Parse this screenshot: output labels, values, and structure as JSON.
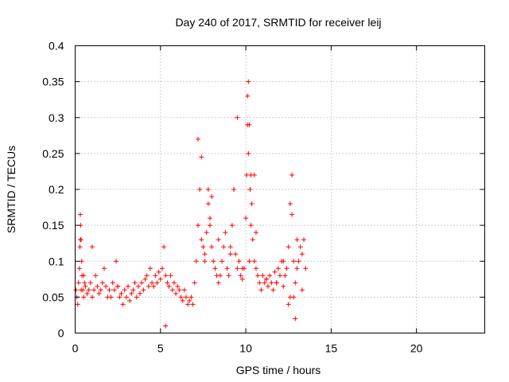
{
  "chart_data": {
    "type": "scatter",
    "title": "Day 240 of 2017, SRMTID for receiver leij",
    "xlabel": "GPS time / hours",
    "ylabel": "SRMTID / TECUs",
    "xlim": [
      0,
      24
    ],
    "ylim": [
      0,
      0.4
    ],
    "xticks": [
      0,
      5,
      10,
      15,
      20
    ],
    "xtick_labels": [
      "0",
      "5",
      "10",
      "15",
      "20"
    ],
    "yticks": [
      0,
      0.05,
      0.1,
      0.15,
      0.2,
      0.25,
      0.3,
      0.35,
      0.4
    ],
    "ytick_labels": [
      "0",
      "0.05",
      "0.1",
      "0.15",
      "0.2",
      "0.25",
      "0.3",
      "0.35",
      "0.4"
    ],
    "grid": true,
    "marker": "+",
    "marker_color": "#ff0000",
    "series": [
      {
        "name": "SRMTID",
        "x": [
          0.05,
          0.1,
          0.15,
          0.2,
          0.25,
          0.28,
          0.3,
          0.32,
          0.35,
          0.38,
          0.4,
          0.45,
          0.5,
          0.55,
          0.6,
          0.7,
          0.8,
          0.9,
          1.0,
          1.1,
          1.2,
          1.3,
          1.4,
          1.5,
          1.6,
          1.7,
          1.8,
          1.9,
          2.0,
          2.1,
          2.2,
          2.3,
          2.4,
          2.5,
          2.6,
          2.7,
          2.8,
          2.9,
          3.0,
          3.1,
          3.2,
          3.3,
          3.4,
          3.5,
          3.6,
          3.7,
          3.8,
          3.9,
          4.0,
          4.1,
          4.2,
          4.3,
          4.4,
          4.5,
          4.6,
          4.7,
          4.8,
          4.9,
          5.0,
          5.1,
          5.2,
          5.3,
          5.4,
          5.5,
          5.6,
          5.7,
          5.8,
          5.9,
          6.0,
          6.1,
          6.2,
          6.3,
          6.4,
          6.5,
          6.6,
          6.7,
          6.8,
          6.9,
          7.0,
          7.1,
          7.2,
          7.3,
          7.4,
          7.5,
          7.6,
          7.7,
          7.8,
          7.9,
          8.0,
          8.1,
          8.2,
          8.3,
          8.4,
          8.5,
          8.6,
          8.7,
          8.8,
          8.9,
          9.0,
          9.1,
          9.2,
          9.3,
          9.4,
          9.5,
          9.6,
          9.7,
          9.8,
          9.9,
          10.0,
          10.05,
          10.1,
          10.15,
          10.2,
          10.25,
          10.3,
          10.35,
          10.4,
          10.5,
          10.6,
          10.7,
          10.8,
          10.9,
          11.0,
          11.1,
          11.2,
          11.3,
          11.4,
          11.5,
          11.6,
          11.7,
          11.8,
          11.9,
          12.0,
          12.1,
          12.2,
          12.3,
          12.4,
          12.5,
          12.6,
          12.7,
          12.8,
          12.9,
          13.0,
          13.1,
          13.2,
          13.3,
          13.4,
          13.5,
          0.3,
          0.35,
          0.5,
          1.0,
          2.5,
          5.3,
          7.2,
          7.4,
          7.8,
          8.0,
          9.3,
          9.5,
          10.1,
          10.15,
          10.2,
          10.3,
          10.5,
          12.7,
          12.8,
          12.9,
          12.5,
          13.0,
          7.6,
          7.9,
          8.4,
          9.1,
          9.8,
          10.6,
          11.2,
          11.8,
          12.2,
          12.6,
          13.3
        ],
        "y": [
          0.06,
          0.05,
          0.04,
          0.07,
          0.09,
          0.12,
          0.165,
          0.15,
          0.13,
          0.1,
          0.08,
          0.06,
          0.05,
          0.07,
          0.065,
          0.055,
          0.06,
          0.07,
          0.05,
          0.06,
          0.08,
          0.065,
          0.055,
          0.06,
          0.07,
          0.09,
          0.065,
          0.05,
          0.06,
          0.05,
          0.07,
          0.06,
          0.1,
          0.065,
          0.05,
          0.055,
          0.04,
          0.06,
          0.05,
          0.065,
          0.045,
          0.055,
          0.06,
          0.07,
          0.05,
          0.065,
          0.055,
          0.07,
          0.06,
          0.075,
          0.08,
          0.065,
          0.09,
          0.07,
          0.065,
          0.08,
          0.07,
          0.085,
          0.075,
          0.09,
          0.12,
          0.08,
          0.07,
          0.065,
          0.08,
          0.06,
          0.07,
          0.055,
          0.065,
          0.06,
          0.05,
          0.045,
          0.06,
          0.05,
          0.04,
          0.045,
          0.05,
          0.04,
          0.07,
          0.1,
          0.15,
          0.2,
          0.13,
          0.12,
          0.1,
          0.14,
          0.18,
          0.16,
          0.12,
          0.1,
          0.09,
          0.08,
          0.07,
          0.08,
          0.1,
          0.12,
          0.14,
          0.09,
          0.08,
          0.12,
          0.15,
          0.2,
          0.11,
          0.09,
          0.1,
          0.08,
          0.075,
          0.09,
          0.16,
          0.22,
          0.33,
          0.35,
          0.29,
          0.2,
          0.15,
          0.18,
          0.13,
          0.1,
          0.09,
          0.08,
          0.07,
          0.06,
          0.08,
          0.07,
          0.075,
          0.065,
          0.08,
          0.07,
          0.06,
          0.085,
          0.07,
          0.09,
          0.08,
          0.1,
          0.065,
          0.08,
          0.09,
          0.12,
          0.18,
          0.22,
          0.1,
          0.07,
          0.09,
          0.1,
          0.12,
          0.11,
          0.13,
          0.09,
          0.13,
          0.06,
          0.08,
          0.12,
          0.065,
          0.01,
          0.27,
          0.245,
          0.2,
          0.19,
          0.2,
          0.3,
          0.29,
          0.25,
          0.1,
          0.22,
          0.22,
          0.165,
          0.05,
          0.02,
          0.04,
          0.13,
          0.11,
          0.15,
          0.13,
          0.11,
          0.09,
          0.14,
          0.075,
          0.07,
          0.1,
          0.05,
          0.06
        ]
      }
    ]
  }
}
